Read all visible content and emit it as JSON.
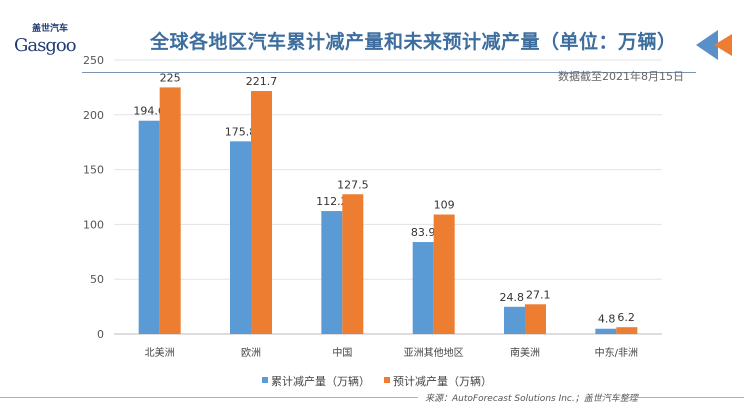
{
  "logo": {
    "cn": "盖世汽车",
    "en": "Gasgoo"
  },
  "chart_data": {
    "type": "bar",
    "title": "全球各地区汽车累计减产量和未来预计减产量（单位：万辆）",
    "annotation": "数据截至2021年8月15日",
    "categories": [
      "北美洲",
      "欧洲",
      "中国",
      "亚洲其他地区",
      "南美洲",
      "中东/非洲"
    ],
    "series": [
      {
        "name": "累计减产量（万辆）",
        "color": "#5b9bd5",
        "values": [
          194.6,
          175.8,
          112.2,
          83.9,
          24.8,
          4.8
        ]
      },
      {
        "name": "预计减产量（万辆）",
        "color": "#ed7d31",
        "values": [
          225,
          221.7,
          127.5,
          109,
          27.1,
          6.2
        ]
      }
    ],
    "ylim": [
      0,
      250
    ],
    "yticks": [
      0,
      50,
      100,
      150,
      200,
      250
    ],
    "grid": true,
    "legend": "bottom",
    "source": "来源：AutoForecast Solutions Inc.；盖世汽车整理"
  }
}
